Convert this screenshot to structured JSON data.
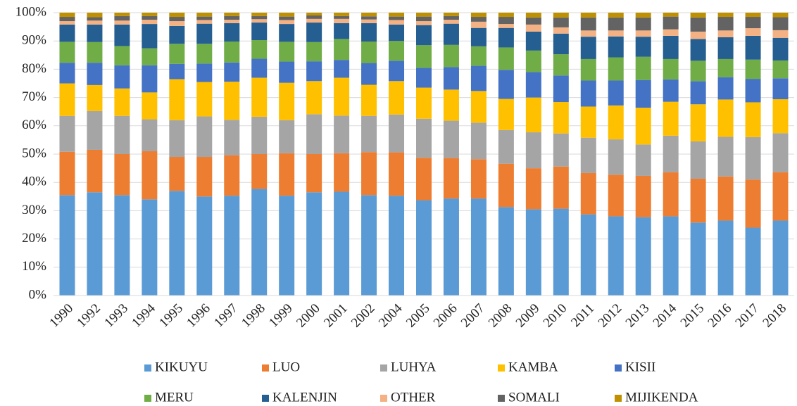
{
  "chart_data": {
    "type": "stacked_bar",
    "categories": [
      "1990",
      "1992",
      "1993",
      "1994",
      "1995",
      "1996",
      "1997",
      "1998",
      "1999",
      "2000",
      "2001",
      "2002",
      "2004",
      "2005",
      "2006",
      "2007",
      "2008",
      "2009",
      "2010",
      "2011",
      "2012",
      "2013",
      "2014",
      "2015",
      "2016",
      "2017",
      "2018"
    ],
    "series": [
      {
        "name": "KIKUYU",
        "color": "#5b9bd5",
        "values": [
          35.5,
          36.5,
          35.5,
          34,
          37,
          35,
          35.3,
          37.7,
          35.3,
          36.5,
          36.7,
          35.5,
          35.3,
          33.7,
          34.3,
          34.3,
          31.3,
          30.5,
          30.7,
          28.7,
          28,
          27.7,
          28,
          25.8,
          26.5,
          24,
          26.5
        ]
      },
      {
        "name": "LUO",
        "color": "#ed7d31",
        "values": [
          15.3,
          15.0,
          14.5,
          17.0,
          12,
          14,
          14.3,
          12.3,
          15.0,
          13.5,
          13.6,
          15.2,
          15.3,
          15.0,
          14.3,
          13.9,
          15.3,
          14.5,
          14.9,
          14.6,
          14.7,
          14.6,
          15.6,
          15.5,
          15.6,
          17.0,
          17.1
        ]
      },
      {
        "name": "LUHYA",
        "color": "#a5a5a5",
        "values": [
          12.7,
          13.7,
          13.5,
          11.3,
          13,
          14.3,
          12.5,
          13.2,
          11.7,
          14.1,
          13.3,
          12.8,
          13.4,
          13.8,
          13.2,
          12.9,
          11.9,
          12.7,
          11.7,
          12.5,
          12.5,
          11.1,
          12.9,
          13.2,
          14.0,
          15.0,
          13.8
        ]
      },
      {
        "name": "KAMBA",
        "color": "#ffc000",
        "values": [
          11.5,
          9.2,
          9.7,
          9.5,
          14.5,
          12.2,
          13.5,
          13.8,
          13.2,
          11.7,
          13.4,
          11.0,
          11.8,
          11.0,
          11.0,
          11.2,
          11.0,
          12.3,
          11.1,
          11.0,
          12.0,
          13.0,
          12.0,
          13.1,
          13.2,
          12.3,
          12.0
        ]
      },
      {
        "name": "KISII",
        "color": "#4472c4",
        "values": [
          7.3,
          7.9,
          8.2,
          9.6,
          5.4,
          6.5,
          6.8,
          6.7,
          7.5,
          7.0,
          6.3,
          7.7,
          7.2,
          7.0,
          8.0,
          8.9,
          10.3,
          9.0,
          9.4,
          9.2,
          8.8,
          9.8,
          7.9,
          8.2,
          7.9,
          8.3,
          7.4
        ]
      },
      {
        "name": "MERU",
        "color": "#70ad47",
        "values": [
          7.4,
          7.3,
          6.8,
          6.0,
          7.1,
          7.0,
          7.4,
          6.6,
          7.0,
          6.8,
          7.4,
          7.6,
          7.0,
          8.0,
          7.8,
          6.9,
          7.9,
          7.6,
          7.5,
          7.6,
          8.2,
          8.2,
          7.2,
          7.2,
          6.4,
          6.8,
          6.3
        ]
      },
      {
        "name": "KALENJIN",
        "color": "#255e91",
        "values": [
          6.1,
          6.2,
          7.6,
          8.6,
          6.3,
          7.1,
          6.5,
          6.2,
          6.3,
          6.9,
          5.6,
          6.5,
          5.8,
          7.1,
          7.5,
          6.5,
          6.9,
          6.7,
          7.3,
          7.9,
          7.4,
          7.1,
          8.2,
          7.7,
          7.7,
          8.4,
          8.0
        ]
      },
      {
        "name": "OTHER",
        "color": "#f4b183",
        "values": [
          1.2,
          1.4,
          1.4,
          1.5,
          1.7,
          1.3,
          1.2,
          1.2,
          1.4,
          1.3,
          1.5,
          1.3,
          1.6,
          1.4,
          1.4,
          2.2,
          1.4,
          2.5,
          2.2,
          2.2,
          2.1,
          2.2,
          2.3,
          2.6,
          2.4,
          2.7,
          2.7
        ]
      },
      {
        "name": "SOMALI",
        "color": "#636363",
        "values": [
          1.5,
          1.2,
          1.6,
          1.3,
          1.5,
          1.2,
          1.3,
          1.1,
          1.2,
          1.2,
          1.0,
          1.1,
          1.2,
          1.6,
          1.3,
          1.7,
          2.5,
          2.5,
          3.5,
          4.6,
          4.6,
          4.6,
          4.5,
          5.0,
          4.8,
          4.0,
          4.6
        ]
      },
      {
        "name": "MIJIKENDA",
        "color": "#bf9000",
        "values": [
          1.5,
          1.6,
          1.2,
          1.2,
          1.5,
          1.4,
          1.2,
          1.2,
          1.4,
          1.0,
          1.2,
          1.3,
          1.4,
          1.4,
          1.2,
          1.5,
          1.5,
          1.7,
          1.7,
          1.7,
          1.7,
          1.7,
          1.4,
          1.7,
          1.5,
          1.5,
          1.6
        ]
      }
    ],
    "ylim": [
      0,
      100
    ],
    "yticks": [
      {
        "value": 0,
        "label": "0%"
      },
      {
        "value": 10,
        "label": "10%"
      },
      {
        "value": 20,
        "label": "20%"
      },
      {
        "value": 30,
        "label": "30%"
      },
      {
        "value": 40,
        "label": "40%"
      },
      {
        "value": 50,
        "label": "50%"
      },
      {
        "value": 60,
        "label": "60%"
      },
      {
        "value": 70,
        "label": "70%"
      },
      {
        "value": 80,
        "label": "80%"
      },
      {
        "value": 90,
        "label": "90%"
      },
      {
        "value": 100,
        "label": "100%"
      }
    ],
    "grid": true,
    "legend": "bottom"
  }
}
